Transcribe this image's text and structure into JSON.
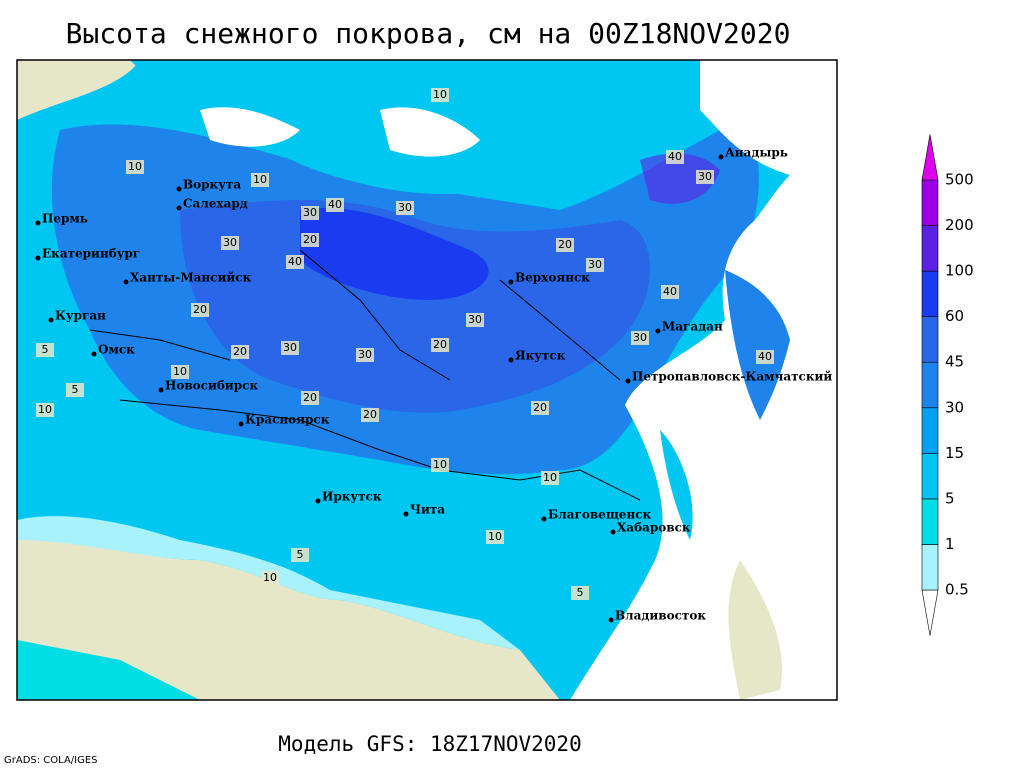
{
  "title": "Высота снежного покрова, см на 00Z18NOV2020",
  "subtitle": "Модель GFS: 18Z17NOV2020",
  "credit": "GrADS: COLA/IGES",
  "legend": {
    "levels": [
      0.5,
      1,
      5,
      15,
      30,
      45,
      60,
      100,
      200,
      500
    ],
    "colors": [
      "#ffffff",
      "#a8f2fc",
      "#00dde4",
      "#00c6f2",
      "#00a2f0",
      "#1e84ec",
      "#2a66e8",
      "#1a3cf0",
      "#5a22e4",
      "#9a00e8",
      "#e000f0"
    ]
  },
  "cities": [
    "Воркута",
    "Салехард",
    "Пермь",
    "Екатеринбург",
    "Ханты-Мансийск",
    "Курган",
    "Омск",
    "Новосибирск",
    "Красноярск",
    "Иркутск",
    "Чита",
    "Благовещенск",
    "Хабаровск",
    "Владивосток",
    "Якутск",
    "Верхоянск",
    "Магадан",
    "Петропавловск-Камчатский",
    "Анадырь"
  ],
  "contour_labels": [
    10,
    5,
    5,
    10,
    30,
    10,
    20,
    30,
    40,
    30,
    40,
    20,
    30,
    20,
    30,
    20,
    10,
    20,
    30,
    20,
    30,
    40,
    30,
    20,
    10,
    10,
    5,
    10,
    40,
    30,
    40,
    20,
    10,
    5,
    10
  ]
}
